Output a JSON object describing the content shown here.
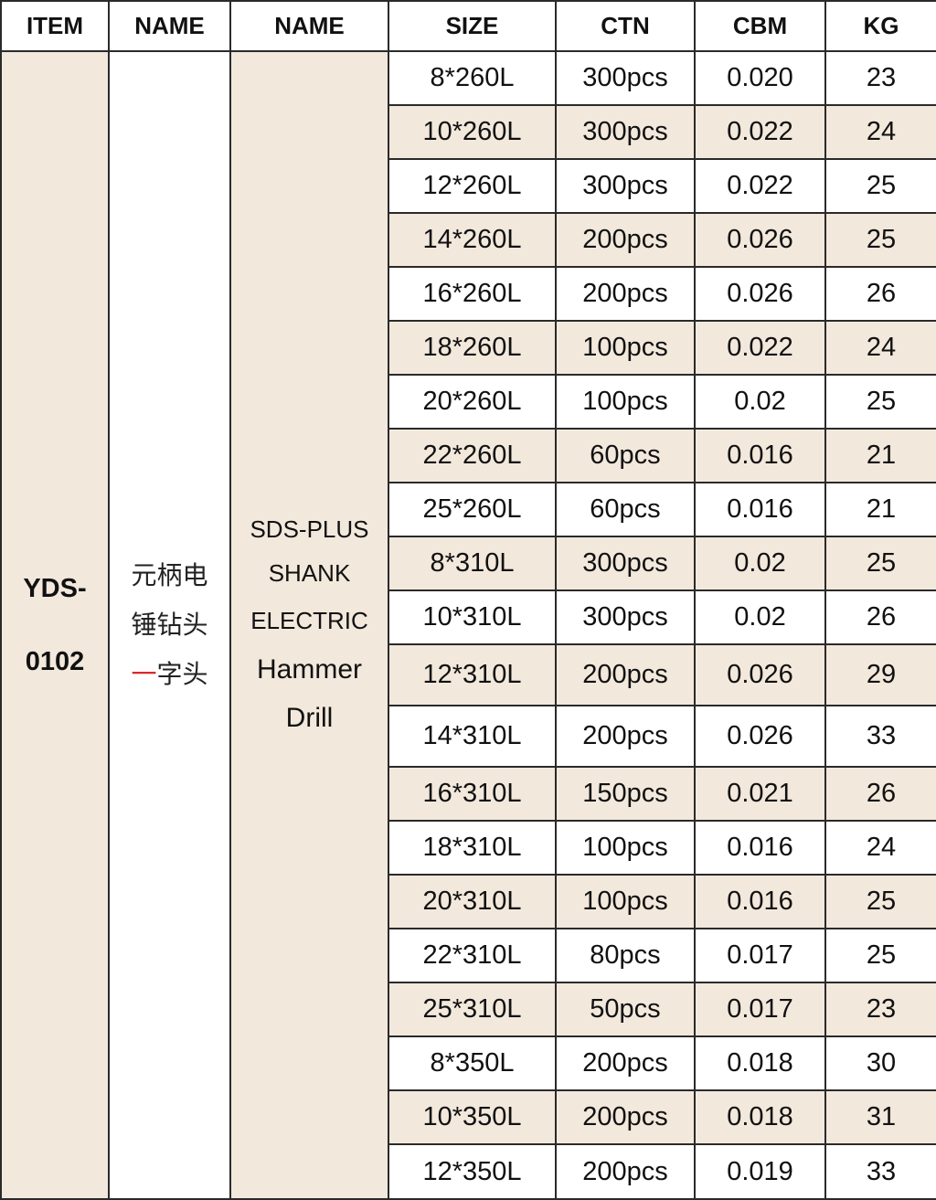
{
  "headers": [
    "ITEM",
    "NAME",
    "NAME",
    "SIZE",
    "CTN",
    "CBM",
    "KG"
  ],
  "item": {
    "line1": "YDS-",
    "line2": "0102"
  },
  "name_cn": {
    "line1": "元柄电",
    "line2": "锤钻头",
    "line3_red": "一",
    "line3_rest": "字头",
    "accent_color": "#d62a2a"
  },
  "name_en": {
    "line1": "SDS-PLUS",
    "line2": "SHANK",
    "line3": "ELECTRIC",
    "line4": "Hammer",
    "line5": "Drill"
  },
  "rows": [
    {
      "size": "8*260L",
      "ctn": "300pcs",
      "cbm": "0.020",
      "kg": "23"
    },
    {
      "size": "10*260L",
      "ctn": "300pcs",
      "cbm": "0.022",
      "kg": "24"
    },
    {
      "size": "12*260L",
      "ctn": "300pcs",
      "cbm": "0.022",
      "kg": "25"
    },
    {
      "size": "14*260L",
      "ctn": "200pcs",
      "cbm": "0.026",
      "kg": "25"
    },
    {
      "size": "16*260L",
      "ctn": "200pcs",
      "cbm": "0.026",
      "kg": "26"
    },
    {
      "size": "18*260L",
      "ctn": "100pcs",
      "cbm": "0.022",
      "kg": "24"
    },
    {
      "size": "20*260L",
      "ctn": "100pcs",
      "cbm": "0.02",
      "kg": "25"
    },
    {
      "size": "22*260L",
      "ctn": "60pcs",
      "cbm": "0.016",
      "kg": "21"
    },
    {
      "size": "25*260L",
      "ctn": "60pcs",
      "cbm": "0.016",
      "kg": "21"
    },
    {
      "size": "8*310L",
      "ctn": "300pcs",
      "cbm": "0.02",
      "kg": "25"
    },
    {
      "size": "10*310L",
      "ctn": "300pcs",
      "cbm": "0.02",
      "kg": "26"
    },
    {
      "size": "12*310L",
      "ctn": "200pcs",
      "cbm": "0.026",
      "kg": "29"
    },
    {
      "size": "14*310L",
      "ctn": "200pcs",
      "cbm": "0.026",
      "kg": "33"
    },
    {
      "size": "16*310L",
      "ctn": "150pcs",
      "cbm": "0.021",
      "kg": "26"
    },
    {
      "size": "18*310L",
      "ctn": "100pcs",
      "cbm": "0.016",
      "kg": "24"
    },
    {
      "size": "20*310L",
      "ctn": "100pcs",
      "cbm": "0.016",
      "kg": "25"
    },
    {
      "size": "22*310L",
      "ctn": "80pcs",
      "cbm": "0.017",
      "kg": "25"
    },
    {
      "size": "25*310L",
      "ctn": "50pcs",
      "cbm": "0.017",
      "kg": "23"
    },
    {
      "size": "8*350L",
      "ctn": "200pcs",
      "cbm": "0.018",
      "kg": "30"
    },
    {
      "size": "10*350L",
      "ctn": "200pcs",
      "cbm": "0.018",
      "kg": "31"
    },
    {
      "size": "12*350L",
      "ctn": "200pcs",
      "cbm": "0.019",
      "kg": "33"
    }
  ]
}
